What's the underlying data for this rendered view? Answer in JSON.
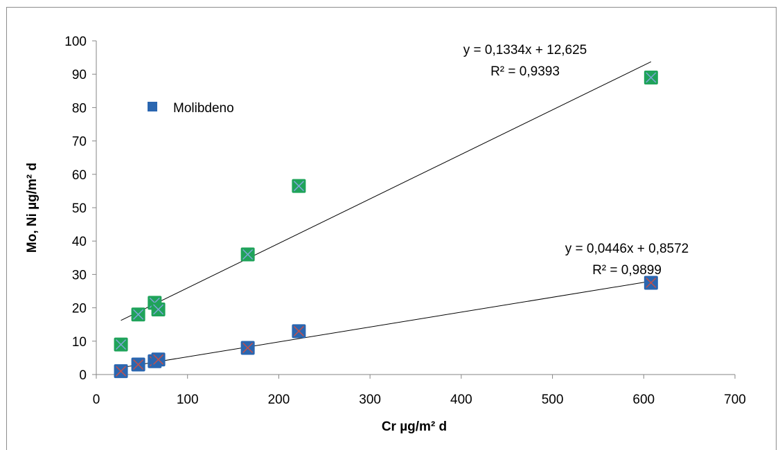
{
  "chart_data": {
    "type": "scatter",
    "xlabel": "Cr µg/m² d",
    "ylabel": "Mo, Ni µg/m² d",
    "xlim": [
      0,
      700
    ],
    "ylim": [
      0,
      100
    ],
    "xticks": [
      0,
      100,
      200,
      300,
      400,
      500,
      600,
      700
    ],
    "yticks": [
      0,
      10,
      20,
      30,
      40,
      50,
      60,
      70,
      80,
      90,
      100
    ],
    "grid": false,
    "legend": {
      "entries": [
        "Molibdeno"
      ],
      "placement": "upper-left"
    },
    "series": [
      {
        "name": "Molibdeno",
        "color": "#2a66b0",
        "marker_overlay_color": "#c0504d",
        "points": [
          [
            27,
            1
          ],
          [
            46,
            3
          ],
          [
            64,
            4
          ],
          [
            68,
            4.5
          ],
          [
            166,
            8
          ],
          [
            222,
            13
          ],
          [
            608,
            27.5
          ]
        ],
        "trendline": {
          "slope": 0.0446,
          "intercept": 0.8572,
          "x_range": [
            27,
            608
          ],
          "equation": "y = 0,0446x + 0,8572",
          "r2": "R² = 0,9899"
        }
      },
      {
        "color": "#1fa35a",
        "marker_overlay_color": "#7ea6d8",
        "points": [
          [
            27,
            9
          ],
          [
            46,
            18
          ],
          [
            64,
            21.5
          ],
          [
            68,
            19.5
          ],
          [
            166,
            36
          ],
          [
            222,
            56.5
          ],
          [
            608,
            89
          ]
        ],
        "trendline": {
          "slope": 0.1334,
          "intercept": 12.625,
          "x_range": [
            27,
            608
          ],
          "equation": "y = 0,1334x + 12,625",
          "r2": "R² = 0,9393"
        }
      }
    ]
  }
}
